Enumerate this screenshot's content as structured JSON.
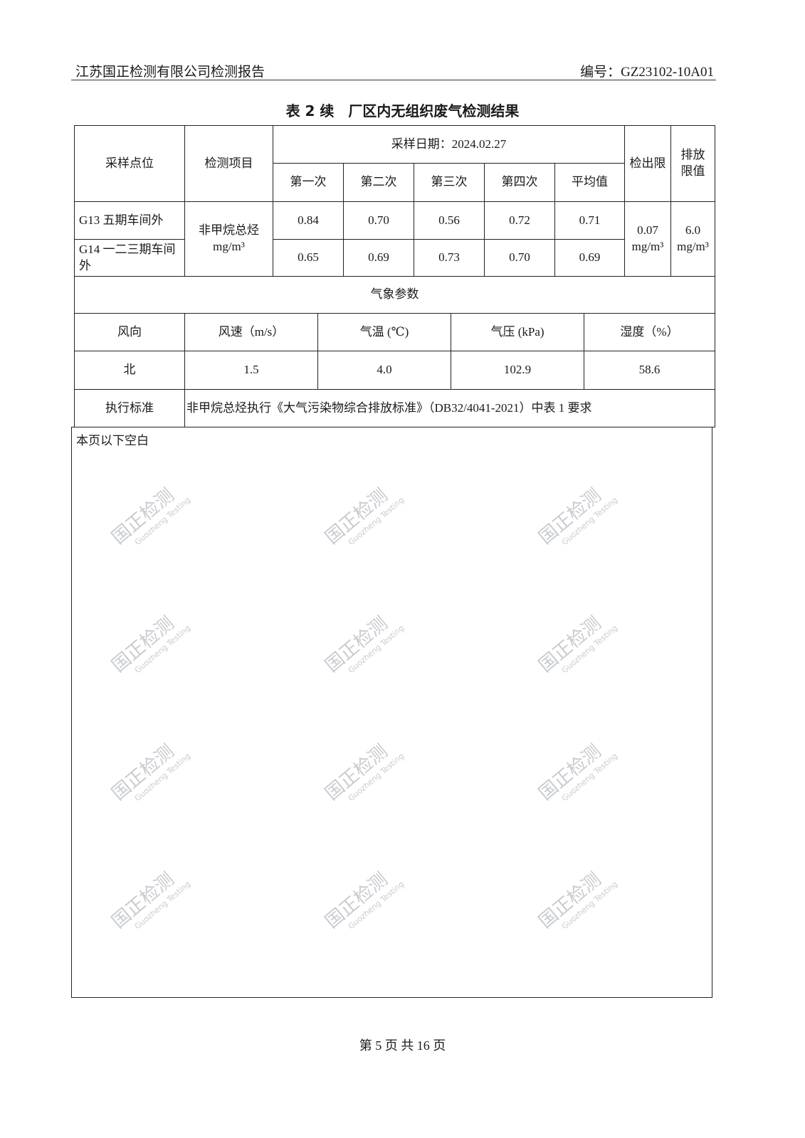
{
  "header": {
    "company": "江苏国正检测有限公司检测报告",
    "report_no": "编号：GZ23102-10A01"
  },
  "title": "表 2 续　厂区内无组织废气检测结果",
  "table": {
    "col_point": "采样点位",
    "col_item": "检测项目",
    "sampling_date": "采样日期：2024.02.27",
    "runs": [
      "第一次",
      "第二次",
      "第三次",
      "第四次",
      "平均值"
    ],
    "col_detect_limit": "检出限",
    "col_emission_limit": "排放限值",
    "item": "非甲烷总烃",
    "item_unit": "mg/m³",
    "rows": [
      {
        "point": "G13  五期车间外",
        "values": [
          "0.84",
          "0.70",
          "0.56",
          "0.72",
          "0.71"
        ]
      },
      {
        "point": "G14  一二三期车间外",
        "values": [
          "0.65",
          "0.69",
          "0.73",
          "0.70",
          "0.69"
        ]
      }
    ],
    "detect_limit": "0.07",
    "detect_limit_unit": "mg/m³",
    "emission_limit": "6.0",
    "emission_limit_unit": "mg/m³",
    "weather_title": "气象参数",
    "weather_headers": [
      "风向",
      "风速（m/s）",
      "气温 (℃)",
      "气压 (kPa)",
      "湿度（%）"
    ],
    "weather_values": [
      "北",
      "1.5",
      "4.0",
      "102.9",
      "58.6"
    ],
    "standard_label": "执行标准",
    "standard_text": "非甲烷总烃执行《大气污染物综合排放标准》（DB32/4041-2021）中表 1 要求",
    "blank_note": "本页以下空白"
  },
  "footer": "第 5 页 共 16 页",
  "watermark": {
    "cn": "国正检测",
    "en": "Guozheng Testing"
  }
}
